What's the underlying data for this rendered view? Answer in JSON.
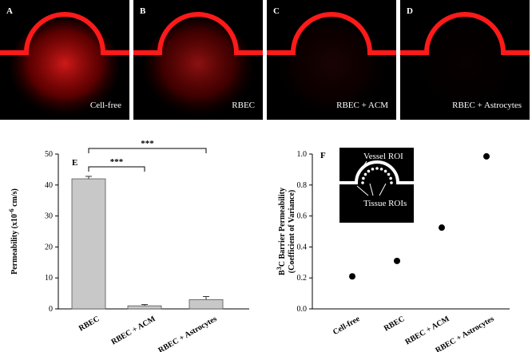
{
  "panels": [
    {
      "label": "A",
      "condition": "Cell-free",
      "leak": 0.95
    },
    {
      "label": "B",
      "condition": "RBEC",
      "leak": 0.65
    },
    {
      "label": "C",
      "condition": "RBEC + ACM",
      "leak": 0.12
    },
    {
      "label": "D",
      "condition": "RBEC + Astrocytes",
      "leak": 0.03
    }
  ],
  "colors": {
    "vessel": "#ff1a1a",
    "bar": "#c8c8c8",
    "point": "#000000"
  },
  "chart_data": [
    {
      "type": "bar",
      "panel_label": "E",
      "categories": [
        "RBEC",
        "RBEC + ACM",
        "RBEC + Astrocytes"
      ],
      "values": [
        42,
        1,
        3
      ],
      "errors": [
        0.8,
        0.4,
        1.0
      ],
      "ylabel_main": "Permeability (x10",
      "ylabel_exp": "-6",
      "ylabel_tail": " cm/s)",
      "ylim": [
        0,
        50
      ],
      "yticks": [
        "0",
        "10",
        "20",
        "30",
        "40",
        "50"
      ],
      "significance": [
        {
          "from": 0,
          "to": 1,
          "label": "***"
        },
        {
          "from": 0,
          "to": 2,
          "label": "***"
        }
      ]
    },
    {
      "type": "scatter",
      "panel_label": "F",
      "categories": [
        "Cell-free",
        "RBEC",
        "RBEC + ACM",
        "RBEC + Astrocytes"
      ],
      "values": [
        0.21,
        0.31,
        0.525,
        0.985
      ],
      "ylabel_line1_pre": "B",
      "ylabel_line1_sup": "3",
      "ylabel_line1_post": "C Barrier Permeability",
      "ylabel_line2": "(Coefficient of Variance)",
      "ylim": [
        0,
        1.0
      ],
      "yticks": [
        "0.0",
        "0.2",
        "0.4",
        "0.6",
        "0.8",
        "1.0"
      ],
      "inset": {
        "vessel_label": "Vessel ROI",
        "tissue_label": "Tissue ROIs"
      }
    }
  ]
}
